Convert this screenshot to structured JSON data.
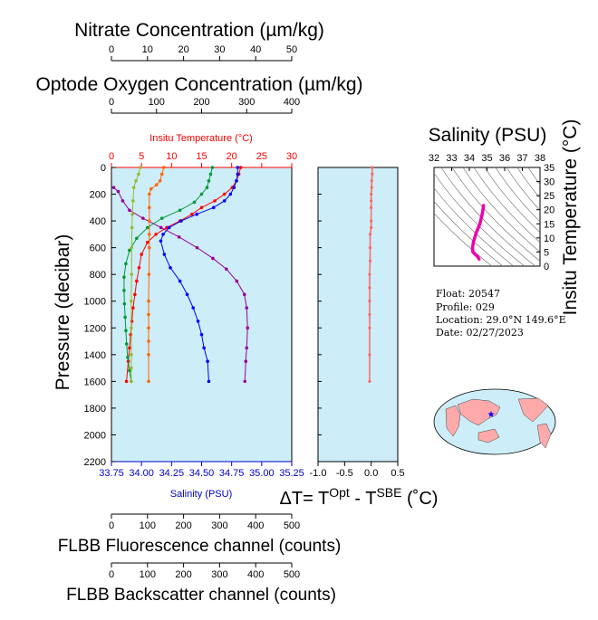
{
  "chart_data": [
    {
      "type": "line",
      "yaxis": {
        "label": "Pressure (decibar)",
        "ticks": [
          "0",
          "200",
          "400",
          "600",
          "800",
          "1000",
          "1200",
          "1400",
          "1600",
          "1800",
          "2000",
          "2200"
        ],
        "ylim": [
          0,
          2200
        ],
        "inverted": true
      },
      "axes": {
        "nitrate": {
          "title": "Nitrate Concentration (µm/kg)",
          "ticks": [
            "0",
            "10",
            "20",
            "30",
            "40",
            "50"
          ],
          "range": [
            0,
            50
          ]
        },
        "oxygen": {
          "title": "Optode Oxygen Concentration (µm/kg)",
          "ticks": [
            "0",
            "100",
            "200",
            "300",
            "400"
          ],
          "range": [
            0,
            400
          ]
        },
        "temperature": {
          "title": "Insitu Temperature (°C)",
          "ticks": [
            "0",
            "5",
            "10",
            "15",
            "20",
            "25",
            "30"
          ],
          "range": [
            0,
            30
          ],
          "color": "#ff0000"
        },
        "salinity": {
          "title": "Salinity (PSU)",
          "ticks": [
            "33.75",
            "34.00",
            "34.25",
            "34.50",
            "34.75",
            "35.00",
            "35.25"
          ],
          "range": [
            33.75,
            35.25
          ],
          "color": "#0000cc"
        },
        "fluorescence": {
          "title": "FLBB Fluorescence channel (counts)",
          "ticks": [
            "0",
            "100",
            "200",
            "300",
            "400",
            "500"
          ],
          "range": [
            0,
            500
          ]
        },
        "backscatter": {
          "title": "FLBB Backscatter channel (counts)",
          "ticks": [
            "0",
            "100",
            "200",
            "300",
            "400",
            "500"
          ],
          "range": [
            0,
            500
          ]
        }
      },
      "background": "#cdeef8",
      "series": [
        {
          "color": "#ff0000",
          "axis": "temperature",
          "x": [
            21.5,
            21.2,
            20.8,
            20.1,
            18.8,
            17.2,
            15.0,
            13.4,
            11.4,
            9.2,
            7.4,
            6.0,
            5.0,
            4.6,
            4.2,
            3.9,
            3.6,
            3.4,
            3.2,
            3.0,
            2.8,
            2.5
          ],
          "y": [
            0,
            50,
            100,
            150,
            200,
            250,
            300,
            350,
            400,
            450,
            500,
            560,
            650,
            750,
            850,
            950,
            1050,
            1150,
            1250,
            1350,
            1450,
            1600
          ]
        },
        {
          "color": "#0000ff",
          "axis": "salinity",
          "x": [
            34.8,
            34.8,
            34.79,
            34.77,
            34.74,
            34.69,
            34.6,
            34.46,
            34.33,
            34.23,
            34.18,
            34.16,
            34.19,
            34.24,
            34.32,
            34.38,
            34.43,
            34.47,
            34.5,
            34.52,
            34.55,
            34.56
          ],
          "y": [
            0,
            50,
            100,
            150,
            200,
            250,
            300,
            350,
            400,
            450,
            500,
            550,
            650,
            750,
            850,
            950,
            1050,
            1150,
            1250,
            1350,
            1450,
            1600
          ]
        },
        {
          "color": "#990099",
          "axis": "oxygen",
          "x": [
            5,
            15,
            25,
            40,
            70,
            110,
            150,
            190,
            225,
            255,
            278,
            295,
            300,
            302,
            300,
            298,
            296
          ],
          "y": [
            150,
            180,
            250,
            320,
            380,
            450,
            520,
            600,
            680,
            760,
            850,
            950,
            1050,
            1200,
            1350,
            1450,
            1600
          ]
        },
        {
          "color": "#009933",
          "axis": "nitrate",
          "x": [
            28,
            27.5,
            27,
            26.5,
            25,
            23,
            19,
            14,
            10,
            7,
            5,
            4,
            3.5,
            3.5,
            3.6,
            3.8,
            4.0,
            4.2,
            4.5,
            5.0,
            5.5
          ],
          "y": [
            0,
            50,
            100,
            150,
            200,
            260,
            320,
            380,
            450,
            530,
            620,
            720,
            820,
            920,
            1020,
            1120,
            1220,
            1320,
            1420,
            1520,
            1600
          ]
        },
        {
          "color": "#ff6600",
          "axis": "fluorescence",
          "x": [
            145,
            140,
            135,
            125,
            110,
            105,
            105,
            105,
            105,
            105,
            104,
            103,
            103,
            103,
            103,
            103,
            103
          ],
          "y": [
            0,
            50,
            100,
            130,
            160,
            200,
            300,
            400,
            500,
            600,
            800,
            1000,
            1100,
            1200,
            1300,
            1400,
            1600
          ]
        },
        {
          "color": "#99b833",
          "axis": "backscatter",
          "x": [
            80,
            75,
            68,
            62,
            60,
            58,
            57,
            56,
            56,
            55,
            55,
            55,
            55,
            55
          ],
          "y": [
            0,
            50,
            100,
            150,
            250,
            350,
            450,
            600,
            800,
            1000,
            1200,
            1400,
            1500,
            1600
          ]
        }
      ]
    },
    {
      "type": "line",
      "xlabel": "ΔT= T^Opt - T^SBE (°C)",
      "xticks": [
        "-1.0",
        "-0.5",
        "0.0",
        "0.5"
      ],
      "xlim": [
        -1.0,
        0.5
      ],
      "ylim": [
        0,
        2200
      ],
      "series": [
        {
          "color": "#ff6666",
          "x": [
            0.02,
            0.02,
            0.01,
            0.01,
            0.0,
            0.0,
            0.0,
            0.0,
            0.0,
            -0.02,
            -0.02,
            -0.02,
            -0.03,
            -0.03,
            -0.03,
            -0.03,
            -0.03,
            -0.03,
            -0.03
          ],
          "y": [
            0,
            50,
            100,
            150,
            200,
            250,
            300,
            400,
            450,
            500,
            600,
            700,
            800,
            900,
            1000,
            1100,
            1200,
            1400,
            1600
          ]
        }
      ]
    },
    {
      "type": "line",
      "title": "Salinity (PSU)",
      "xticks": [
        "32",
        "33",
        "34",
        "35",
        "36",
        "37",
        "38"
      ],
      "xlim": [
        32,
        38
      ],
      "ylabel": "Insitu Temperature (°C)",
      "yticks": [
        "0",
        "5",
        "10",
        "15",
        "20",
        "25",
        "30",
        "35"
      ],
      "ylim": [
        0,
        35
      ],
      "series": [
        {
          "color": "#ee00aa",
          "x": [
            34.8,
            34.79,
            34.74,
            34.6,
            34.4,
            34.23,
            34.18,
            34.2,
            34.32,
            34.45,
            34.55
          ],
          "y": [
            21.5,
            20.8,
            18.8,
            15.0,
            12.0,
            8.5,
            6.5,
            5.0,
            4.2,
            3.5,
            2.5
          ]
        }
      ]
    }
  ],
  "float_info": {
    "float": "Float:  20547",
    "profile": "Profile:  029",
    "location": "Location:  29.0°N  149.6°E",
    "date": "Date:  02/27/2023"
  },
  "map": {
    "marker_color": "#0000ff",
    "land_color": "#ffaaaa",
    "ocean_color": "#cdeef8"
  }
}
